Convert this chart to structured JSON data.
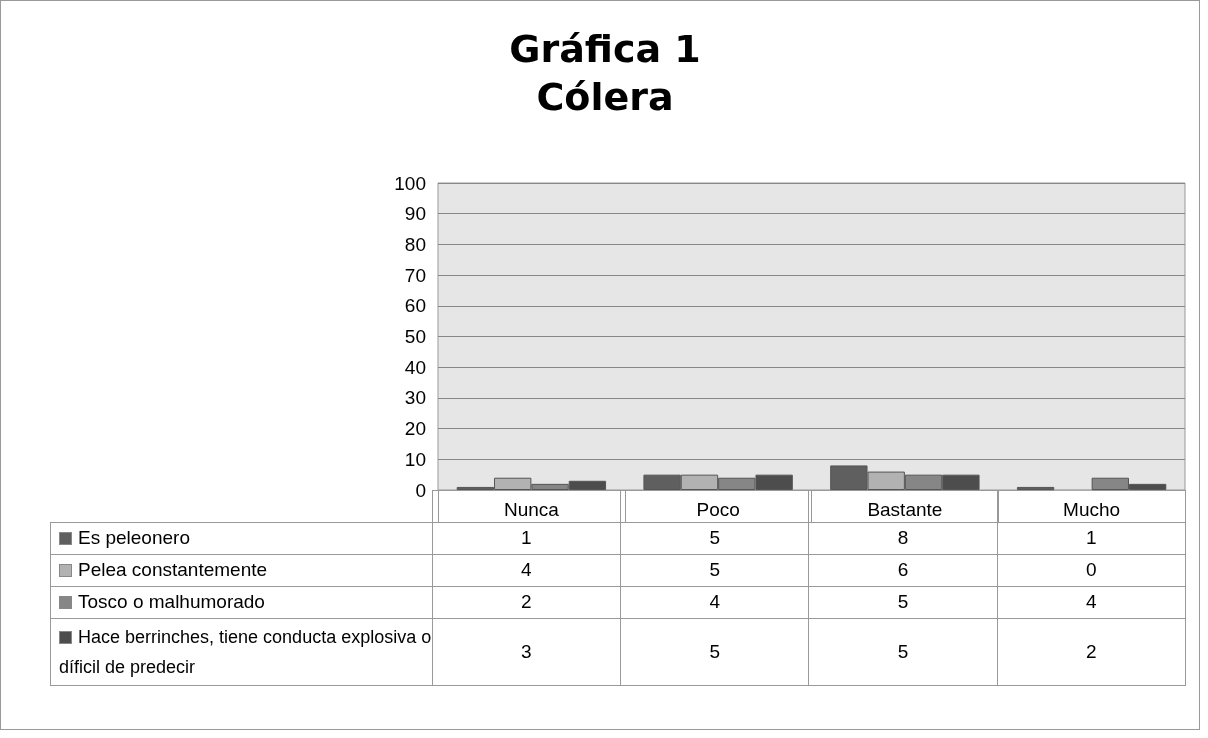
{
  "chart_data": {
    "type": "bar",
    "title": "Gráfica 1\nCólera",
    "categories": [
      "Nunca",
      "Poco",
      "Bastante",
      "Mucho"
    ],
    "series": [
      {
        "name": "Es peleonero",
        "color": "#5f5f5f",
        "values": [
          1,
          5,
          8,
          1
        ]
      },
      {
        "name": "Pelea constantemente",
        "color": "#b2b2b2",
        "values": [
          4,
          5,
          6,
          0
        ]
      },
      {
        "name": "Tosco o malhumorado",
        "color": "#868686",
        "values": [
          2,
          4,
          5,
          4
        ]
      },
      {
        "name": "Hace berrinches, tiene conducta explosiva o díficil de predecir",
        "color": "#4d4d4d",
        "values": [
          3,
          5,
          5,
          2
        ]
      }
    ],
    "ylim": [
      0,
      100
    ],
    "yticks": [
      0,
      10,
      20,
      30,
      40,
      50,
      60,
      70,
      80,
      90,
      100
    ],
    "grid": "y",
    "legend": "bottom",
    "data_labels": true
  }
}
